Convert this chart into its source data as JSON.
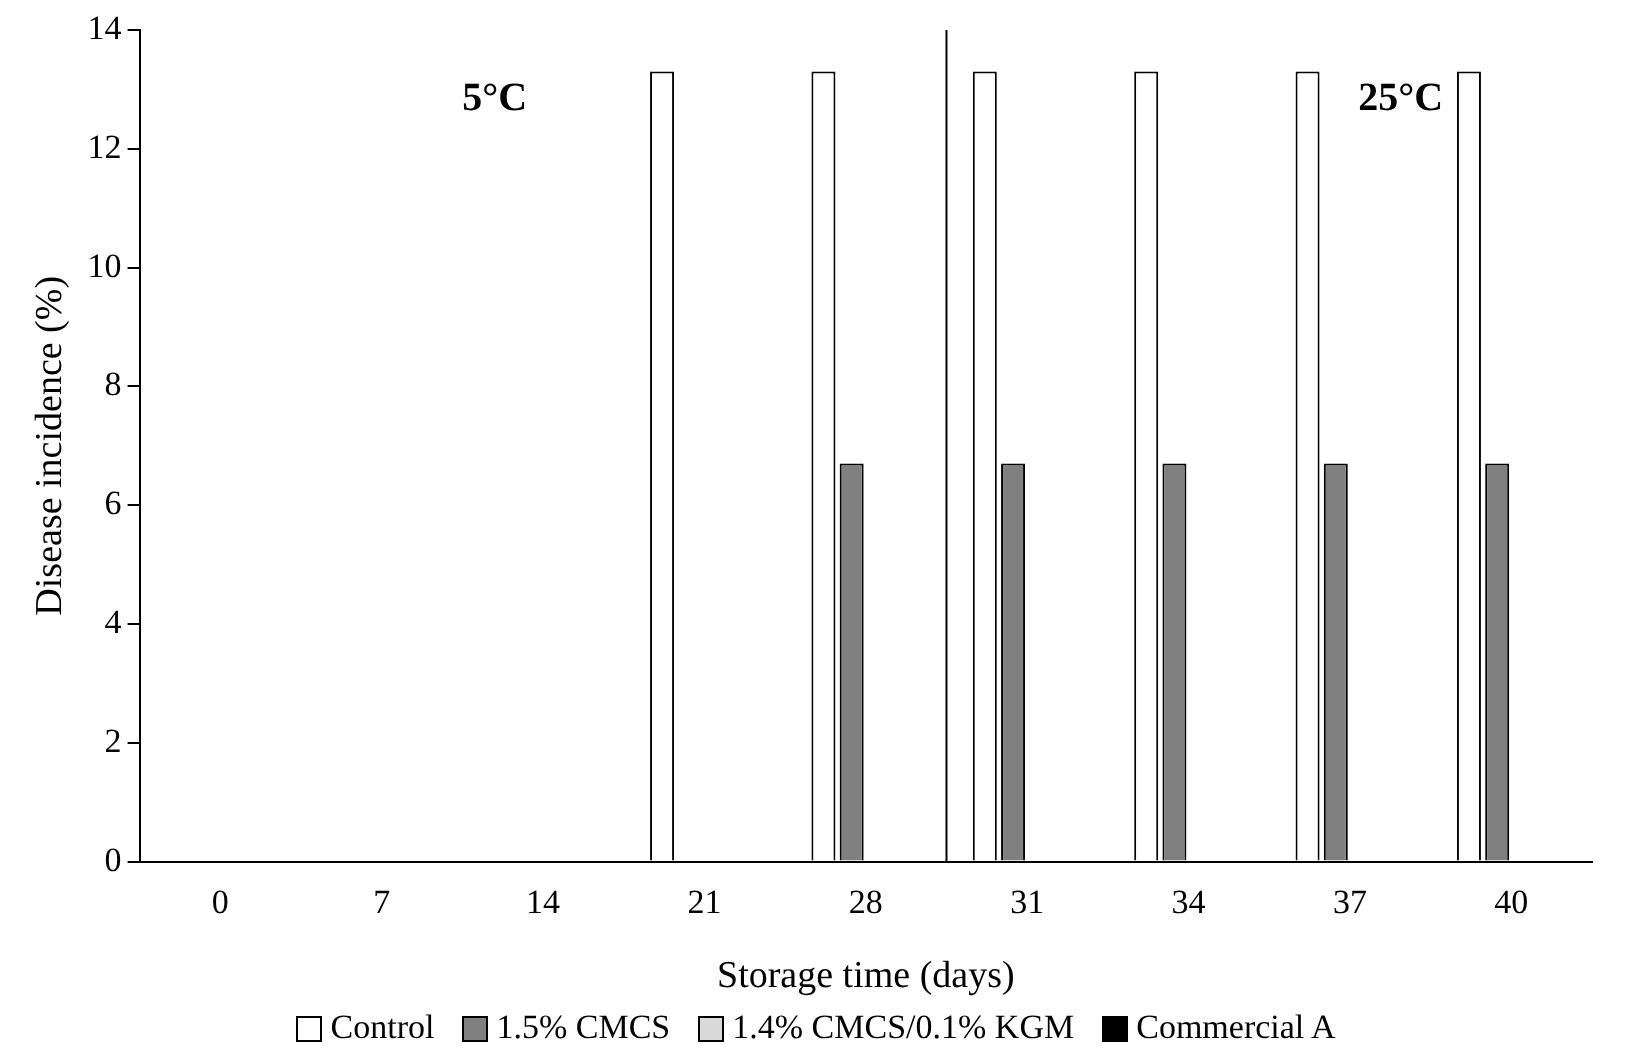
{
  "chart_data": {
    "type": "bar",
    "categories": [
      "0",
      "7",
      "14",
      "21",
      "28",
      "31",
      "34",
      "37",
      "40"
    ],
    "series": [
      {
        "name": "Control",
        "color": "#ffffff",
        "values": [
          0,
          0,
          0,
          13.3,
          13.3,
          13.3,
          13.3,
          13.3,
          13.3
        ]
      },
      {
        "name": "1.5% CMCS",
        "color": "#808080",
        "values": [
          0,
          0,
          0,
          0,
          6.7,
          6.7,
          6.7,
          6.7,
          6.7
        ]
      },
      {
        "name": "1.4% CMCS/0.1% KGM",
        "color": "#d9d9d9",
        "values": [
          0,
          0,
          0,
          0,
          0,
          0,
          0,
          0,
          0
        ]
      },
      {
        "name": "Commercial A",
        "color": "#000000",
        "values": [
          0,
          0,
          0,
          0,
          0,
          0,
          0,
          0,
          0
        ]
      }
    ],
    "xlabel": "Storage time (days)",
    "ylabel": "Disease incidence (%)",
    "ylim": [
      0,
      14
    ],
    "yticks": [
      0,
      2,
      4,
      6,
      8,
      10,
      12,
      14
    ],
    "annotations": [
      "5°C",
      "25°C"
    ],
    "grid": false,
    "legend": "bottom"
  }
}
